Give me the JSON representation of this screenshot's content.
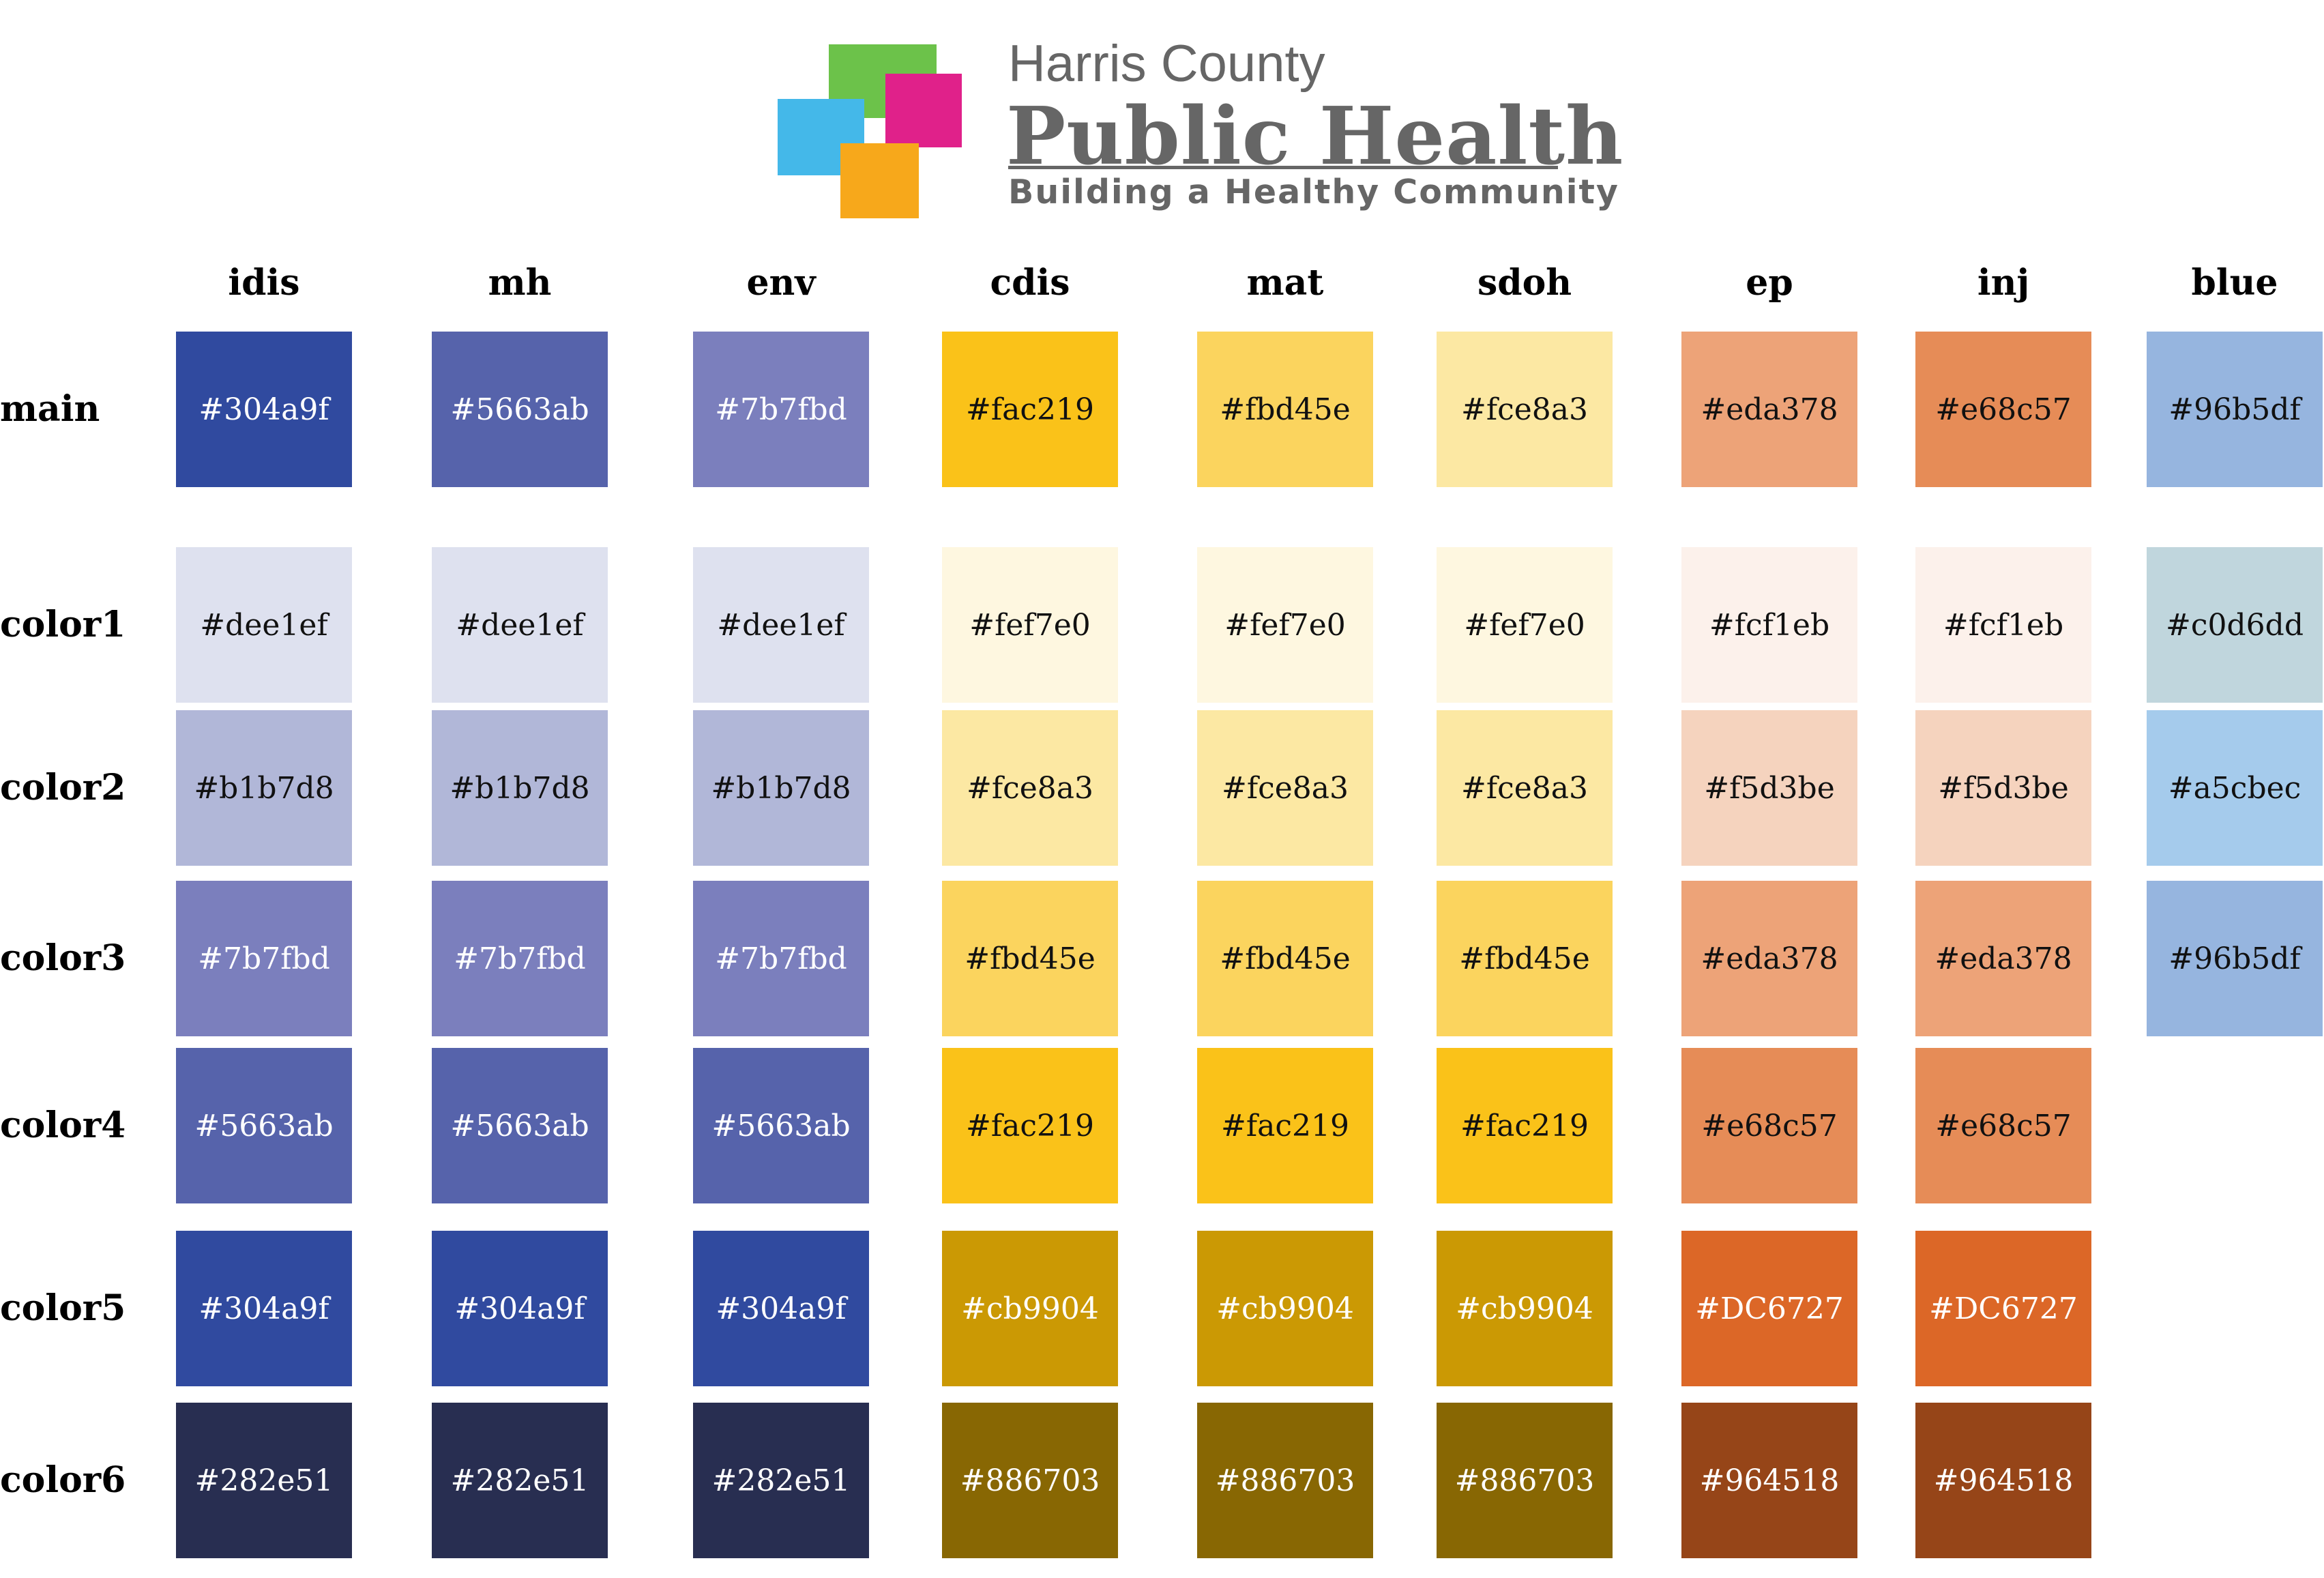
{
  "logo": {
    "line1": "Harris County",
    "line2": "Public Health",
    "line3": "Building a Healthy Community",
    "mark_colors": [
      "#6cc24a",
      "#e0218a",
      "#44b8e9",
      "#f7a81b"
    ],
    "text_color": "#666666"
  },
  "columns": [
    "idis",
    "mh",
    "env",
    "cdis",
    "mat",
    "sdoh",
    "ep",
    "inj",
    "blue"
  ],
  "rows": [
    "main",
    "color1",
    "color2",
    "color3",
    "color4",
    "color5",
    "color6"
  ],
  "swatches": {
    "idis": [
      "#304a9f",
      "#dee1ef",
      "#b1b7d8",
      "#7b7fbd",
      "#5663ab",
      "#304a9f",
      "#282e51"
    ],
    "mh": [
      "#5663ab",
      "#dee1ef",
      "#b1b7d8",
      "#7b7fbd",
      "#5663ab",
      "#304a9f",
      "#282e51"
    ],
    "env": [
      "#7b7fbd",
      "#dee1ef",
      "#b1b7d8",
      "#7b7fbd",
      "#5663ab",
      "#304a9f",
      "#282e51"
    ],
    "cdis": [
      "#fac219",
      "#fef7e0",
      "#fce8a3",
      "#fbd45e",
      "#fac219",
      "#cb9904",
      "#886703"
    ],
    "mat": [
      "#fbd45e",
      "#fef7e0",
      "#fce8a3",
      "#fbd45e",
      "#fac219",
      "#cb9904",
      "#886703"
    ],
    "sdoh": [
      "#fce8a3",
      "#fef7e0",
      "#fce8a3",
      "#fbd45e",
      "#fac219",
      "#cb9904",
      "#886703"
    ],
    "ep": [
      "#eda378",
      "#fcf1eb",
      "#f5d3be",
      "#eda378",
      "#e68c57",
      "#DC6727",
      "#964518"
    ],
    "inj": [
      "#e68c57",
      "#fcf1eb",
      "#f5d3be",
      "#eda378",
      "#e68c57",
      "#DC6727",
      "#964518"
    ],
    "blue": [
      "#96b5df",
      "#c0d6dd",
      "#a5cbec",
      "#96b5df",
      null,
      null,
      null
    ]
  }
}
